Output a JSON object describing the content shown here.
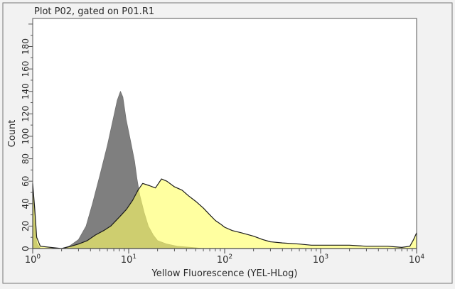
{
  "chart_data": {
    "type": "area",
    "title": "Plot P02, gated on P01.R1",
    "xlabel": "Yellow Fluorescence (YEL-HLog)",
    "ylabel": "Count",
    "x_scale": "log",
    "xlim": [
      1,
      10000
    ],
    "ylim": [
      0,
      205
    ],
    "x_ticks": [
      {
        "value": 1,
        "base": "10",
        "exp": "0"
      },
      {
        "value": 10,
        "base": "10",
        "exp": "1"
      },
      {
        "value": 100,
        "base": "10",
        "exp": "2"
      },
      {
        "value": 1000,
        "base": "10",
        "exp": "3"
      },
      {
        "value": 10000,
        "base": "10",
        "exp": "4"
      }
    ],
    "y_ticks": [
      0,
      20,
      40,
      60,
      80,
      100,
      120,
      140,
      160,
      180
    ],
    "series": [
      {
        "color": "#7f7f7f",
        "points": [
          [
            1,
            55
          ],
          [
            1.05,
            30
          ],
          [
            1.1,
            5
          ],
          [
            1.2,
            0
          ],
          [
            2,
            0
          ],
          [
            2.4,
            2
          ],
          [
            3,
            8
          ],
          [
            3.6,
            20
          ],
          [
            4.2,
            40
          ],
          [
            5,
            65
          ],
          [
            6,
            92
          ],
          [
            7,
            118
          ],
          [
            7.6,
            132
          ],
          [
            8.2,
            140
          ],
          [
            8.7,
            135
          ],
          [
            9.4,
            115
          ],
          [
            10.5,
            95
          ],
          [
            11.5,
            78
          ],
          [
            12.2,
            62
          ],
          [
            13,
            48
          ],
          [
            14.5,
            32
          ],
          [
            16,
            20
          ],
          [
            18,
            12
          ],
          [
            20,
            7
          ],
          [
            25,
            4
          ],
          [
            32,
            2
          ],
          [
            45,
            1
          ],
          [
            60,
            0
          ],
          [
            10000,
            0
          ]
        ]
      },
      {
        "color": "#ffff66",
        "points": [
          [
            1,
            58
          ],
          [
            1.05,
            35
          ],
          [
            1.1,
            10
          ],
          [
            1.2,
            2
          ],
          [
            2,
            0
          ],
          [
            2.5,
            2
          ],
          [
            3,
            4
          ],
          [
            3.7,
            7
          ],
          [
            4.5,
            12
          ],
          [
            5.5,
            16
          ],
          [
            6.5,
            20
          ],
          [
            8,
            28
          ],
          [
            9.5,
            35
          ],
          [
            11,
            43
          ],
          [
            12.5,
            52
          ],
          [
            14,
            58
          ],
          [
            16.5,
            56
          ],
          [
            19,
            54
          ],
          [
            22,
            62
          ],
          [
            25,
            60
          ],
          [
            30,
            55
          ],
          [
            36,
            52
          ],
          [
            42,
            47
          ],
          [
            50,
            42
          ],
          [
            60,
            36
          ],
          [
            70,
            30
          ],
          [
            80,
            25
          ],
          [
            90,
            22
          ],
          [
            100,
            19
          ],
          [
            120,
            16
          ],
          [
            150,
            14
          ],
          [
            200,
            11
          ],
          [
            250,
            8
          ],
          [
            300,
            6
          ],
          [
            400,
            5
          ],
          [
            600,
            4
          ],
          [
            800,
            3
          ],
          [
            1000,
            3
          ],
          [
            2000,
            3
          ],
          [
            3000,
            2
          ],
          [
            5000,
            2
          ],
          [
            7000,
            1
          ],
          [
            8500,
            2
          ],
          [
            9300,
            8
          ],
          [
            10000,
            14
          ]
        ]
      }
    ]
  }
}
